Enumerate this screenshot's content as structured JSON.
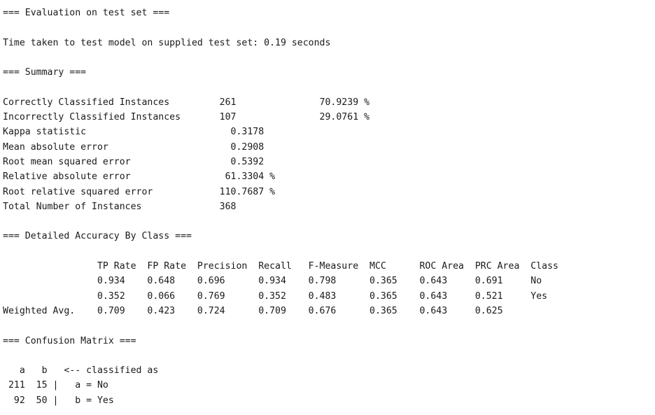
{
  "output_text": "=== Evaluation on test set ===\n\nTime taken to test model on supplied test set: 0.19 seconds\n\n=== Summary ===\n\nCorrectly Classified Instances         261               70.9239 %\nIncorrectly Classified Instances       107               29.0761 %\nKappa statistic                          0.3178\nMean absolute error                      0.2908\nRoot mean squared error                  0.5392\nRelative absolute error                 61.3304 %\nRoot relative squared error            110.7687 %\nTotal Number of Instances              368     \n\n=== Detailed Accuracy By Class ===\n\n                 TP Rate  FP Rate  Precision  Recall   F-Measure  MCC      ROC Area  PRC Area  Class\n                 0.934    0.648    0.696      0.934    0.798      0.365    0.643     0.691     No\n                 0.352    0.066    0.769      0.352    0.483      0.365    0.643     0.521     Yes\nWeighted Avg.    0.709    0.423    0.724      0.709    0.676      0.365    0.643     0.625     \n\n=== Confusion Matrix ===\n\n   a   b   <-- classified as\n 211  15 |   a = No\n  92  50 |   b = Yes\n"
}
